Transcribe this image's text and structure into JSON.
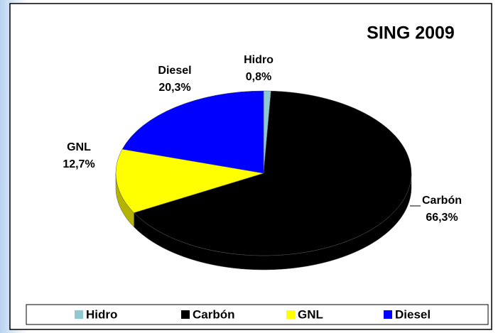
{
  "chart_data": {
    "type": "pie3d",
    "title": "SING 2009",
    "categories": [
      "Hidro",
      "Carbón",
      "GNL",
      "Diesel"
    ],
    "values": [
      0.8,
      66.3,
      12.7,
      20.3
    ],
    "value_labels": [
      "0,8%",
      "66,3%",
      "12,7%",
      "20,3%"
    ],
    "colors": [
      "#8ec9d2",
      "#000000",
      "#ffff00",
      "#0000ff"
    ],
    "legend": "bottom"
  }
}
